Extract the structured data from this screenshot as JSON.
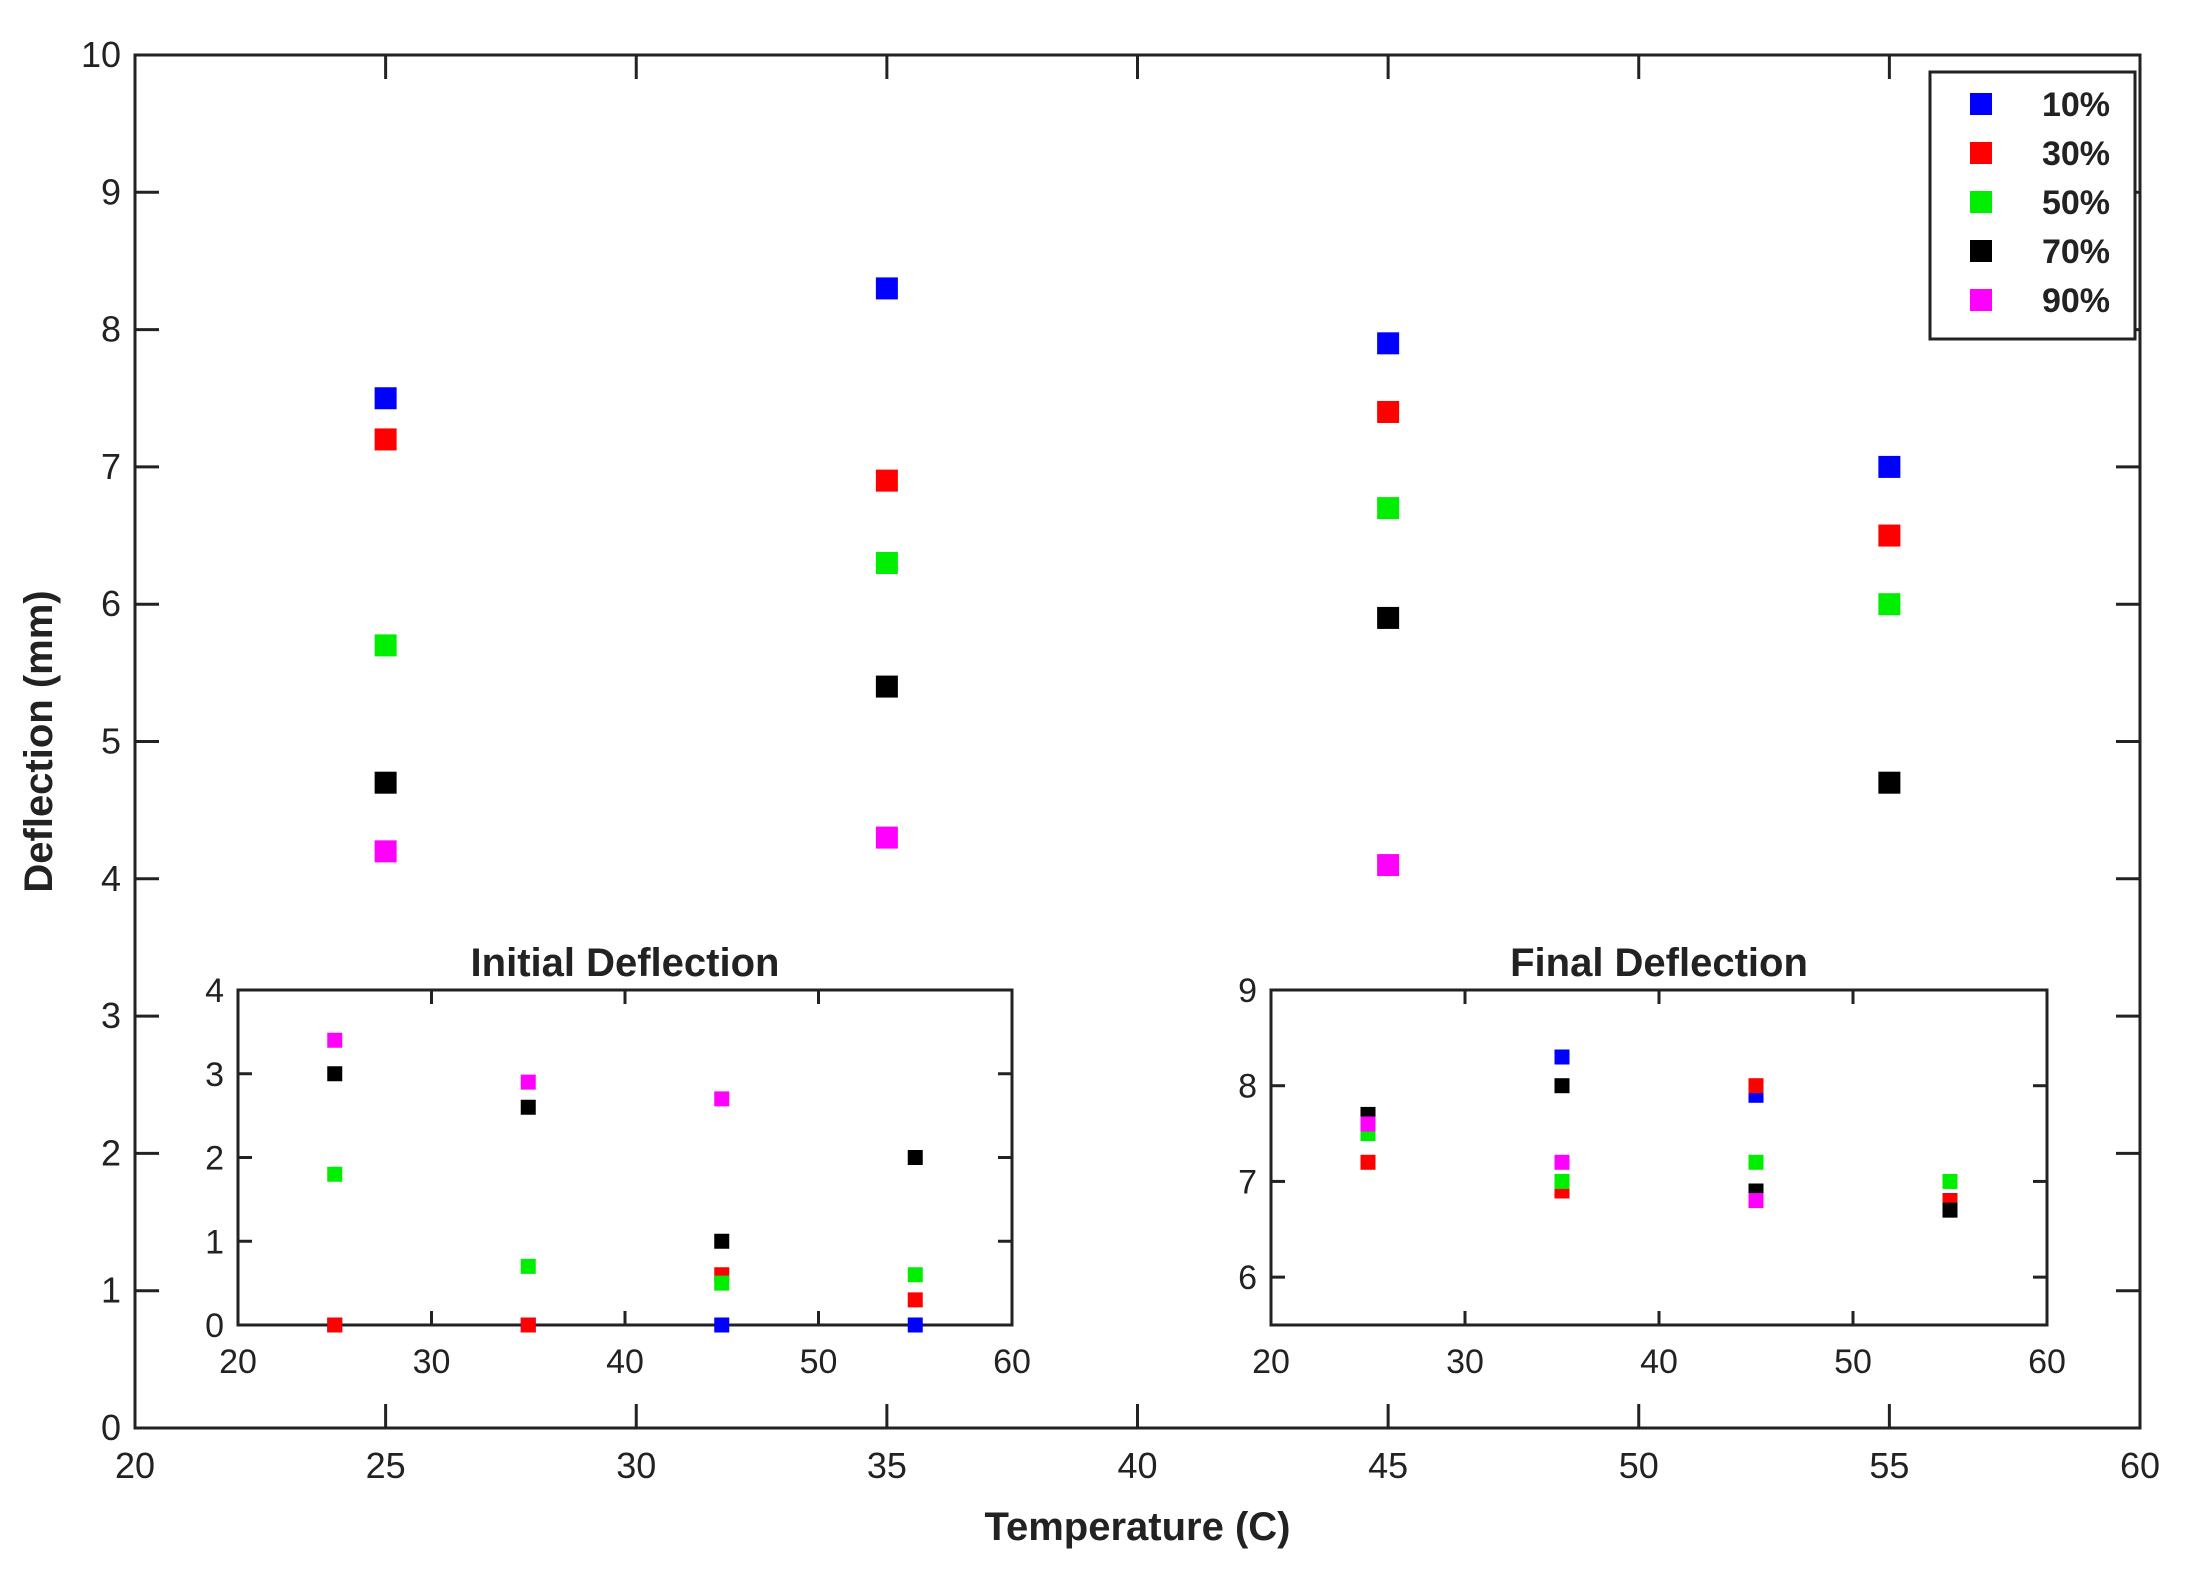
{
  "colors": {
    "10%": "#0000ff",
    "30%": "#ff0000",
    "50%": "#00ee00",
    "70%": "#000000",
    "90%": "#ff00ff"
  },
  "chart_data": [
    {
      "type": "scatter",
      "id": "main",
      "title": "",
      "xlabel": "Temperature (C)",
      "ylabel": "Deflection (mm)",
      "xlim": [
        20,
        60
      ],
      "ylim": [
        0,
        10
      ],
      "xticks": [
        "20",
        "25",
        "30",
        "35",
        "40",
        "45",
        "50",
        "55",
        "60"
      ],
      "yticks": [
        "0",
        "1",
        "2",
        "3",
        "4",
        "5",
        "6",
        "7",
        "8",
        "9",
        "10"
      ],
      "legend": [
        "10%",
        "30%",
        "50%",
        "70%",
        "90%"
      ],
      "legend_position": "top-right",
      "series": [
        {
          "name": "10%",
          "x": [
            25,
            35,
            45,
            55
          ],
          "y": [
            7.5,
            8.3,
            7.9,
            7.0
          ]
        },
        {
          "name": "30%",
          "x": [
            25,
            35,
            45,
            55
          ],
          "y": [
            7.2,
            6.9,
            7.4,
            6.5
          ]
        },
        {
          "name": "50%",
          "x": [
            25,
            35,
            45,
            55
          ],
          "y": [
            5.7,
            6.3,
            6.7,
            6.0
          ]
        },
        {
          "name": "70%",
          "x": [
            25,
            35,
            45,
            55
          ],
          "y": [
            4.7,
            5.4,
            5.9,
            4.7
          ]
        },
        {
          "name": "90%",
          "x": [
            25,
            35,
            45
          ],
          "y": [
            4.2,
            4.3,
            4.1
          ]
        }
      ]
    },
    {
      "type": "scatter",
      "id": "initial",
      "title": "Initial Deflection",
      "xlim": [
        20,
        60
      ],
      "ylim": [
        0,
        4
      ],
      "xticks": [
        "20",
        "30",
        "40",
        "50",
        "60"
      ],
      "yticks": [
        "0",
        "1",
        "2",
        "3",
        "4"
      ],
      "ytick_values": [
        0,
        1,
        2,
        3,
        4
      ],
      "series": [
        {
          "name": "10%",
          "x": [
            25,
            35,
            45,
            55
          ],
          "y": [
            0,
            0,
            0,
            0
          ]
        },
        {
          "name": "30%",
          "x": [
            25,
            35,
            45,
            55
          ],
          "y": [
            0,
            0,
            0.6,
            0.3
          ]
        },
        {
          "name": "50%",
          "x": [
            25,
            35,
            45,
            55
          ],
          "y": [
            1.8,
            0.7,
            0.5,
            0.6
          ]
        },
        {
          "name": "70%",
          "x": [
            25,
            35,
            45,
            55
          ],
          "y": [
            3.0,
            2.6,
            1.0,
            2.0
          ]
        },
        {
          "name": "90%",
          "x": [
            25,
            35,
            45
          ],
          "y": [
            3.4,
            2.9,
            2.7
          ]
        }
      ]
    },
    {
      "type": "scatter",
      "id": "final",
      "title": "Final Deflection",
      "xlim": [
        20,
        60
      ],
      "ylim": [
        5.5,
        9
      ],
      "xticks": [
        "20",
        "30",
        "40",
        "50",
        "60"
      ],
      "yticks": [
        "6",
        "7",
        "8",
        "9"
      ],
      "ytick_values": [
        6,
        7,
        8,
        9
      ],
      "series": [
        {
          "name": "10%",
          "x": [
            25,
            35,
            45,
            55
          ],
          "y": [
            7.5,
            8.3,
            7.9,
            6.8
          ]
        },
        {
          "name": "30%",
          "x": [
            25,
            35,
            45,
            55
          ],
          "y": [
            7.2,
            6.9,
            8.0,
            6.8
          ]
        },
        {
          "name": "50%",
          "x": [
            25,
            35,
            45,
            55
          ],
          "y": [
            7.5,
            7.0,
            7.2,
            7.0
          ]
        },
        {
          "name": "70%",
          "x": [
            25,
            35,
            45,
            55
          ],
          "y": [
            7.7,
            8.0,
            6.9,
            6.7
          ]
        },
        {
          "name": "90%",
          "x": [
            25,
            35,
            45
          ],
          "y": [
            7.6,
            7.2,
            6.8
          ]
        }
      ]
    }
  ]
}
